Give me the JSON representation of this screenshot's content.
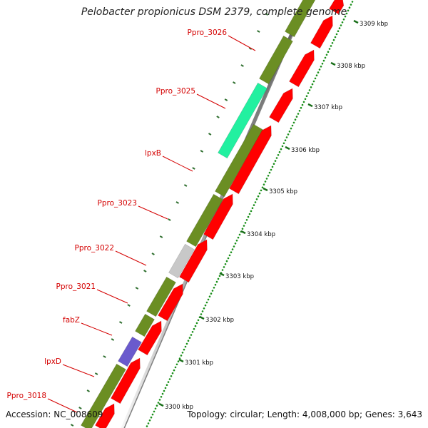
{
  "title": "Pelobacter propionicus DSM 2379, complete genome",
  "footer": {
    "accession": "Accession: NC_008609",
    "summary": "Topology: circular; Length: 4,008,000 bp; Genes: 3,643"
  },
  "colors": {
    "cds_forward": "#6b8e23",
    "cds_reverse": "#ff0000",
    "highlight_gene": "#22f0a0",
    "grey_gene": "#c8c8c8",
    "blue_gene": "#6a5acd",
    "label_text": "#d40000",
    "tick_dots": "#1a8f1a"
  },
  "genes": [
    {
      "label": "Ppro_3026"
    },
    {
      "label": "Ppro_3025"
    },
    {
      "label": "lpxB"
    },
    {
      "label": "Ppro_3023"
    },
    {
      "label": "Ppro_3022"
    },
    {
      "label": "Ppro_3021"
    },
    {
      "label": "fabZ"
    },
    {
      "label": "lpxD"
    },
    {
      "label": "Ppro_3018"
    }
  ],
  "scale": [
    {
      "label": "3309 kbp"
    },
    {
      "label": "3308 kbp"
    },
    {
      "label": "3307 kbp"
    },
    {
      "label": "3306 kbp"
    },
    {
      "label": "3305 kbp"
    },
    {
      "label": "3304 kbp"
    },
    {
      "label": "3303 kbp"
    },
    {
      "label": "3302 kbp"
    },
    {
      "label": "3301 kbp"
    },
    {
      "label": "3300 kbp"
    }
  ]
}
